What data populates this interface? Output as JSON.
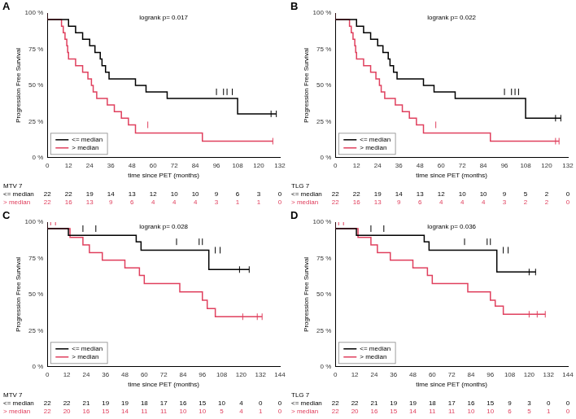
{
  "chart_data": [
    {
      "type": "line",
      "panel": "A",
      "annotation": "logrank p= 0.017",
      "x_label": "time since PET (months)",
      "y_label": "Progression Free Survival",
      "xlim": [
        0,
        132
      ],
      "xticks": [
        0,
        12,
        24,
        36,
        48,
        60,
        72,
        84,
        96,
        108,
        120,
        132
      ],
      "ylim": [
        0,
        100
      ],
      "yticks": [
        {
          "value": 0,
          "label": "0 %"
        },
        {
          "value": 25,
          "label": "25 %"
        },
        {
          "value": 50,
          "label": "50 %"
        },
        {
          "value": 75,
          "label": "75 %"
        },
        {
          "value": 100,
          "label": "100 %"
        }
      ],
      "grid": false,
      "legend": "bottom left",
      "line_style": "step",
      "series": [
        {
          "name": "<= median",
          "color": "#000000",
          "x": [
            0,
            12,
            16,
            20,
            24,
            27,
            30,
            31,
            33,
            35,
            50,
            56,
            68,
            108,
            112,
            130
          ],
          "values": [
            100,
            95.5,
            90.9,
            86.4,
            81.8,
            77.3,
            72.7,
            68.2,
            63.6,
            59.1,
            54.5,
            50,
            45.5,
            40.9,
            30.3,
            30.3
          ],
          "censored": [
            {
              "x": 96,
              "y": 45.5
            },
            {
              "x": 100,
              "y": 45.5
            },
            {
              "x": 102,
              "y": 45.5
            },
            {
              "x": 105,
              "y": 45.5
            },
            {
              "x": 127,
              "y": 30.3
            },
            {
              "x": 130,
              "y": 30.3
            }
          ]
        },
        {
          "name": "> median",
          "color": "#e0405e",
          "x": [
            0,
            8,
            9,
            10,
            11,
            11.5,
            12,
            16,
            20,
            23,
            25,
            26,
            28,
            34,
            38,
            42,
            46,
            50,
            88,
            110,
            128
          ],
          "values": [
            100,
            95.5,
            90.9,
            86.4,
            81.8,
            77.3,
            72.7,
            68.2,
            63.6,
            59.1,
            54.5,
            50,
            45.5,
            40.9,
            36.4,
            31.8,
            27.3,
            22.7,
            17,
            11.4,
            11.4
          ],
          "censored": [
            {
              "x": 57,
              "y": 22.7
            },
            {
              "x": 128,
              "y": 11.4
            }
          ]
        }
      ],
      "risk_table": {
        "title": "MTV 7",
        "rows": [
          {
            "name": "<= median",
            "values": [
              22,
              22,
              19,
              14,
              13,
              12,
              10,
              10,
              9,
              6,
              3,
              0
            ]
          },
          {
            "name": "> median",
            "values": [
              22,
              16,
              13,
              9,
              6,
              4,
              4,
              4,
              3,
              1,
              1,
              0
            ]
          }
        ]
      }
    },
    {
      "type": "line",
      "panel": "B",
      "annotation": "logrank p= 0.022",
      "x_label": "time since PET (months)",
      "y_label": "Progression Free Survival",
      "xlim": [
        0,
        132
      ],
      "xticks": [
        0,
        12,
        24,
        36,
        48,
        60,
        72,
        84,
        96,
        108,
        120,
        132
      ],
      "ylim": [
        0,
        100
      ],
      "yticks": [
        {
          "value": 0,
          "label": "0 %"
        },
        {
          "value": 25,
          "label": "25 %"
        },
        {
          "value": 50,
          "label": "50 %"
        },
        {
          "value": 75,
          "label": "75 %"
        },
        {
          "value": 100,
          "label": "100 %"
        }
      ],
      "grid": false,
      "legend": "bottom left",
      "line_style": "step",
      "series": [
        {
          "name": "<= median",
          "color": "#000000",
          "x": [
            0,
            12,
            16,
            20,
            24,
            27,
            30,
            31,
            33,
            35,
            50,
            56,
            68,
            108,
            112,
            128
          ],
          "values": [
            100,
            95.5,
            90.9,
            86.4,
            81.8,
            77.3,
            72.7,
            68.2,
            63.6,
            59.1,
            54.5,
            50,
            45.5,
            40.9,
            27.3,
            27.3
          ],
          "censored": [
            {
              "x": 96,
              "y": 45.5
            },
            {
              "x": 100,
              "y": 45.5
            },
            {
              "x": 102,
              "y": 45.5
            },
            {
              "x": 104,
              "y": 45.5
            },
            {
              "x": 125,
              "y": 27.3
            },
            {
              "x": 128,
              "y": 27.3
            }
          ]
        },
        {
          "name": "> median",
          "color": "#e0405e",
          "x": [
            0,
            8,
            9,
            10,
            11,
            11.5,
            12,
            16,
            20,
            23,
            25,
            26,
            28,
            34,
            38,
            42,
            46,
            50,
            88,
            110,
            127
          ],
          "values": [
            100,
            95.5,
            90.9,
            86.4,
            81.8,
            77.3,
            72.7,
            68.2,
            63.6,
            59.1,
            54.5,
            50,
            45.5,
            40.9,
            36.4,
            31.8,
            27.3,
            22.7,
            17,
            11.4,
            11.4
          ],
          "censored": [
            {
              "x": 57,
              "y": 22.7
            },
            {
              "x": 125,
              "y": 11.4
            },
            {
              "x": 127,
              "y": 11.4
            }
          ]
        }
      ],
      "risk_table": {
        "title": "TLG 7",
        "rows": [
          {
            "name": "<= median",
            "values": [
              22,
              22,
              19,
              14,
              13,
              12,
              10,
              10,
              9,
              5,
              2,
              0
            ]
          },
          {
            "name": "> median",
            "values": [
              22,
              16,
              13,
              9,
              6,
              4,
              4,
              4,
              3,
              2,
              2,
              0
            ]
          }
        ]
      }
    },
    {
      "type": "line",
      "panel": "C",
      "annotation": "logrank p= 0.028",
      "x_label": "time since PET (months)",
      "y_label": "Progression Free Survival",
      "xlim": [
        0,
        144
      ],
      "xticks": [
        0,
        12,
        24,
        36,
        48,
        60,
        72,
        84,
        96,
        108,
        120,
        132,
        144
      ],
      "ylim": [
        0,
        100
      ],
      "yticks": [
        {
          "value": 0,
          "label": "0 %"
        },
        {
          "value": 25,
          "label": "25 %"
        },
        {
          "value": 50,
          "label": "50 %"
        },
        {
          "value": 75,
          "label": "75 %"
        },
        {
          "value": 100,
          "label": "100 %"
        }
      ],
      "grid": false,
      "legend": "bottom left",
      "line_style": "step",
      "series": [
        {
          "name": "<= median",
          "color": "#000000",
          "x": [
            0,
            13,
            55,
            58,
            100,
            115,
            125
          ],
          "values": [
            100,
            95.5,
            90.9,
            86.4,
            80.6,
            67.2,
            67.2
          ],
          "censored": [
            {
              "x": 22,
              "y": 95.5
            },
            {
              "x": 30,
              "y": 95.5
            },
            {
              "x": 80,
              "y": 86.4
            },
            {
              "x": 94,
              "y": 86.4
            },
            {
              "x": 96,
              "y": 86.4
            },
            {
              "x": 104,
              "y": 80.6
            },
            {
              "x": 107,
              "y": 80.6
            },
            {
              "x": 119,
              "y": 67.2
            },
            {
              "x": 125,
              "y": 67.2
            }
          ]
        },
        {
          "name": "> median",
          "color": "#e0405e",
          "x": [
            0,
            14,
            22,
            26,
            34,
            48,
            57,
            60,
            82,
            96,
            99,
            104,
            110,
            133
          ],
          "values": [
            100,
            95.5,
            89.5,
            84.2,
            78.9,
            73.7,
            68.4,
            63.2,
            57.5,
            51.8,
            46,
            40.3,
            34.6,
            34.6
          ],
          "censored": [
            {
              "x": 2,
              "y": 100
            },
            {
              "x": 5,
              "y": 100
            },
            {
              "x": 121,
              "y": 34.6
            },
            {
              "x": 130,
              "y": 34.6
            },
            {
              "x": 133,
              "y": 34.6
            }
          ]
        }
      ],
      "risk_table": {
        "title": "MTV 7",
        "rows": [
          {
            "name": "<= median",
            "values": [
              22,
              22,
              21,
              19,
              19,
              18,
              17,
              16,
              15,
              10,
              4,
              0,
              0
            ]
          },
          {
            "name": "> median",
            "values": [
              22,
              20,
              16,
              15,
              14,
              11,
              11,
              10,
              10,
              5,
              4,
              1,
              0
            ]
          }
        ]
      }
    },
    {
      "type": "line",
      "panel": "D",
      "annotation": "logrank p= 0.036",
      "x_label": "time since PET (months)",
      "y_label": "Progression Free Survival",
      "xlim": [
        0,
        144
      ],
      "xticks": [
        0,
        12,
        24,
        36,
        48,
        60,
        72,
        84,
        96,
        108,
        120,
        132,
        144
      ],
      "ylim": [
        0,
        100
      ],
      "yticks": [
        {
          "value": 0,
          "label": "0 %"
        },
        {
          "value": 25,
          "label": "25 %"
        },
        {
          "value": 50,
          "label": "50 %"
        },
        {
          "value": 75,
          "label": "75 %"
        },
        {
          "value": 100,
          "label": "100 %"
        }
      ],
      "grid": false,
      "legend": "bottom left",
      "line_style": "step",
      "series": [
        {
          "name": "<= median",
          "color": "#000000",
          "x": [
            0,
            13,
            55,
            58,
            100,
            117,
            124
          ],
          "values": [
            100,
            95.5,
            90.9,
            86.4,
            80.6,
            65.5,
            65.5
          ],
          "censored": [
            {
              "x": 22,
              "y": 95.5
            },
            {
              "x": 30,
              "y": 95.5
            },
            {
              "x": 80,
              "y": 86.4
            },
            {
              "x": 94,
              "y": 86.4
            },
            {
              "x": 96,
              "y": 86.4
            },
            {
              "x": 104,
              "y": 80.6
            },
            {
              "x": 107,
              "y": 80.6
            },
            {
              "x": 120,
              "y": 65.5
            },
            {
              "x": 124,
              "y": 65.5
            }
          ]
        },
        {
          "name": "> median",
          "color": "#e0405e",
          "x": [
            0,
            14,
            22,
            26,
            34,
            48,
            57,
            60,
            82,
            96,
            99,
            104,
            110,
            130
          ],
          "values": [
            100,
            95.5,
            89.5,
            84.2,
            78.9,
            73.7,
            68.4,
            63.2,
            57.5,
            51.8,
            46,
            41.9,
            36.3,
            36.3
          ],
          "censored": [
            {
              "x": 2,
              "y": 100
            },
            {
              "x": 5,
              "y": 100
            },
            {
              "x": 120,
              "y": 36.3
            },
            {
              "x": 125,
              "y": 36.3
            },
            {
              "x": 130,
              "y": 36.3
            }
          ]
        }
      ],
      "risk_table": {
        "title": "TLG 7",
        "rows": [
          {
            "name": "<= median",
            "values": [
              22,
              22,
              21,
              19,
              19,
              18,
              17,
              16,
              15,
              9,
              3,
              0,
              0
            ]
          },
          {
            "name": "> median",
            "values": [
              22,
              20,
              16,
              15,
              14,
              11,
              11,
              10,
              10,
              6,
              5,
              1,
              0
            ]
          }
        ]
      }
    }
  ]
}
